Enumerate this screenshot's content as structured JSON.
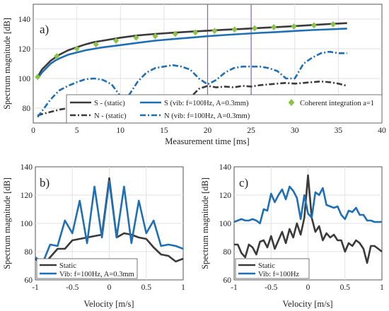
{
  "chart_data": [
    {
      "type": "line",
      "panel_label": "a)",
      "xlabel": "Measurement time [ms]",
      "ylabel": "Spectrum magnitude [dB]",
      "xlim": [
        0,
        40
      ],
      "ylim": [
        70,
        150
      ],
      "xticks": [
        0,
        5,
        10,
        15,
        20,
        25,
        30,
        35,
        40
      ],
      "yticks": [
        80,
        100,
        120,
        140
      ],
      "grid": true,
      "legend_placement": "bottom",
      "markers": [
        20,
        25
      ],
      "marker_color": "#9b59b6",
      "series": [
        {
          "name": "S - (static)",
          "color": "#3a3a3a",
          "dash": "solid",
          "x": [
            0.5,
            1,
            1.5,
            2,
            2.5,
            3,
            4,
            5,
            6,
            7,
            8,
            10,
            12,
            14,
            16,
            18,
            20,
            22,
            24,
            26,
            28,
            30,
            32,
            34,
            36
          ],
          "y": [
            101,
            106,
            109,
            112,
            114,
            116,
            119,
            121,
            123,
            124.5,
            125.5,
            127.5,
            129,
            130,
            130.8,
            131.5,
            132.2,
            132.8,
            133.4,
            134,
            134.6,
            135.3,
            136,
            136.7,
            137.3
          ]
        },
        {
          "name": "S (vib: f=100Hz, A=0.3mm)",
          "color": "#1f6fb5",
          "dash": "solid",
          "x": [
            0.5,
            1,
            1.5,
            2,
            2.5,
            3,
            4,
            5,
            6,
            7,
            8,
            10,
            12,
            14,
            16,
            18,
            20,
            22,
            24,
            26,
            28,
            30,
            32,
            34,
            36
          ],
          "y": [
            100,
            104,
            107,
            110,
            112,
            113.5,
            116,
            117.5,
            119,
            120,
            121,
            122.5,
            124,
            125.5,
            126.5,
            127.5,
            128.5,
            129.3,
            130,
            130.7,
            131.3,
            132,
            132.6,
            133.1,
            133.6
          ]
        },
        {
          "name": "N - (static)",
          "color": "#3a3a3a",
          "dash": "8 3 2 3",
          "x": [
            0.5,
            1,
            2,
            3,
            4,
            5,
            6,
            7,
            8,
            9,
            10,
            11,
            12,
            13,
            14,
            15,
            16,
            17,
            18,
            19,
            20,
            21,
            22,
            23,
            24,
            25,
            26,
            27,
            28,
            29,
            30,
            31,
            32,
            33,
            34,
            35,
            36
          ],
          "y": [
            75,
            76,
            77.5,
            79,
            80,
            81,
            81.5,
            82.5,
            83,
            83.5,
            84,
            84.5,
            85,
            85,
            85.5,
            85.5,
            86,
            86.5,
            87,
            93,
            95,
            94,
            94.5,
            94,
            95,
            94.5,
            95.5,
            96,
            96.5,
            97,
            96.5,
            97,
            97.5,
            98,
            97.5,
            96.5,
            95
          ]
        },
        {
          "name": "N (vib: f=100Hz, A=0.3mm)",
          "color": "#1f6fb5",
          "dash": "8 3 2 3",
          "x": [
            0.5,
            1,
            2,
            3,
            4,
            5,
            6,
            7,
            8,
            9,
            10,
            11,
            12,
            13,
            14,
            15,
            16,
            17,
            18,
            19,
            20,
            21,
            22,
            23,
            24,
            25,
            26,
            27,
            28,
            29,
            30,
            31,
            32,
            33,
            34,
            35,
            36
          ],
          "y": [
            74,
            78,
            86,
            92,
            95,
            97.5,
            99.5,
            100,
            99,
            96,
            88,
            89,
            98,
            104,
            107,
            108,
            109,
            108,
            106,
            100,
            96,
            99,
            104,
            107,
            108,
            108,
            108,
            107,
            105,
            100,
            100,
            110,
            114,
            117,
            118,
            117,
            117
          ]
        },
        {
          "name": "Coherent integration a=1",
          "color": "#8bc34a",
          "marker": "diamond",
          "x": [
            0.5,
            2.7,
            5,
            7.2,
            9.5,
            11.8,
            14,
            16.3,
            18.6,
            20.8,
            23.1,
            25.4,
            27.6,
            29.9,
            32.2,
            34.4
          ],
          "y": [
            101,
            115,
            120,
            123,
            125.5,
            127.5,
            128.5,
            130,
            131,
            132,
            133,
            133.8,
            134.5,
            135,
            135.8,
            136.5
          ]
        }
      ]
    },
    {
      "type": "line",
      "panel_label": "b)",
      "xlabel": "Velocity [m/s]",
      "ylabel": "Spectrum magnitude [dB]",
      "xlim": [
        -1,
        1
      ],
      "ylim": [
        60,
        140
      ],
      "xticks": [
        -1,
        -0.5,
        0,
        0.5,
        1
      ],
      "xtick_labels": [
        "-1",
        "-0.5",
        "0",
        "0.5",
        "1"
      ],
      "yticks": [
        60,
        80,
        100,
        120,
        140
      ],
      "grid": true,
      "legend_placement": "bottom-left",
      "series": [
        {
          "name": "Static",
          "color": "#3a3a3a",
          "x": [
            -1,
            -0.9,
            -0.8,
            -0.7,
            -0.6,
            -0.5,
            -0.4,
            -0.3,
            -0.2,
            -0.1,
            0,
            0.1,
            0.2,
            0.3,
            0.4,
            0.5,
            0.6,
            0.7,
            0.8,
            0.9,
            1
          ],
          "y": [
            75,
            70,
            76,
            82,
            82,
            88,
            89,
            90,
            91,
            92,
            132,
            90,
            93,
            92,
            90,
            89,
            83,
            78,
            77,
            73,
            75
          ]
        },
        {
          "name": "Vib: f=100Hz, A=0.3mm",
          "color": "#1f6fb5",
          "x": [
            -1,
            -0.9,
            -0.8,
            -0.7,
            -0.6,
            -0.5,
            -0.4,
            -0.3,
            -0.2,
            -0.1,
            0,
            0.1,
            0.2,
            0.3,
            0.4,
            0.5,
            0.6,
            0.7,
            0.8,
            0.9,
            1
          ],
          "y": [
            76,
            72,
            85,
            84,
            102,
            93,
            116,
            86,
            126,
            90,
            130,
            90,
            126,
            86,
            116,
            93,
            102,
            84,
            85,
            84,
            82
          ]
        }
      ]
    },
    {
      "type": "line",
      "panel_label": "c)",
      "xlabel": "Velocity [m/s]",
      "ylabel": "Spectrum magnitude [dB]",
      "xlim": [
        -1,
        1
      ],
      "ylim": [
        60,
        140
      ],
      "xticks": [
        -1,
        -0.5,
        0,
        0.5,
        1
      ],
      "xtick_labels": [
        "-1",
        "-0.5",
        "0",
        "0.5",
        "1"
      ],
      "yticks": [
        60,
        80,
        100,
        120,
        140
      ],
      "grid": true,
      "legend_placement": "bottom-left",
      "series": [
        {
          "name": "Static",
          "color": "#3a3a3a",
          "x": [
            -1,
            -0.95,
            -0.9,
            -0.85,
            -0.8,
            -0.75,
            -0.7,
            -0.65,
            -0.6,
            -0.55,
            -0.5,
            -0.45,
            -0.4,
            -0.35,
            -0.3,
            -0.25,
            -0.2,
            -0.15,
            -0.1,
            -0.05,
            0,
            0.05,
            0.1,
            0.15,
            0.2,
            0.25,
            0.3,
            0.35,
            0.4,
            0.45,
            0.5,
            0.55,
            0.6,
            0.65,
            0.7,
            0.75,
            0.8,
            0.85,
            0.9,
            0.95,
            1
          ],
          "y": [
            85,
            85,
            79,
            76,
            85,
            83,
            78,
            87,
            88,
            83,
            91,
            82,
            88,
            94,
            86,
            96,
            90,
            100,
            92,
            104,
            134,
            104,
            94,
            98,
            88,
            93,
            90,
            92,
            88,
            88,
            80,
            86,
            84,
            88,
            86,
            82,
            72,
            84,
            84,
            82,
            80
          ]
        },
        {
          "name": "Vib: f=100Hz",
          "color": "#1f6fb5",
          "x": [
            -1,
            -0.95,
            -0.9,
            -0.85,
            -0.8,
            -0.75,
            -0.7,
            -0.65,
            -0.6,
            -0.55,
            -0.5,
            -0.45,
            -0.4,
            -0.35,
            -0.3,
            -0.25,
            -0.2,
            -0.15,
            -0.1,
            -0.05,
            0,
            0.05,
            0.1,
            0.15,
            0.2,
            0.25,
            0.3,
            0.35,
            0.4,
            0.45,
            0.5,
            0.55,
            0.6,
            0.65,
            0.7,
            0.75,
            0.8,
            0.85,
            0.9,
            0.95,
            1
          ],
          "y": [
            101,
            102,
            103,
            102,
            102,
            103,
            102,
            100,
            110,
            109,
            121,
            115,
            120,
            124,
            117,
            126,
            123,
            118,
            103,
            120,
            107,
            104,
            122,
            120,
            125,
            113,
            112,
            111,
            112,
            106,
            103,
            109,
            108,
            111,
            106,
            106,
            102,
            102,
            101,
            101,
            101
          ]
        }
      ]
    }
  ]
}
